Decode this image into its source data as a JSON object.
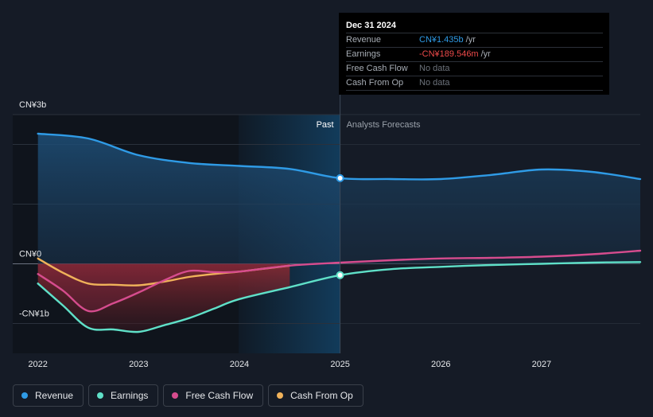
{
  "chart_data": {
    "type": "area",
    "y_tick_labels": [
      "CN¥3b",
      "CN¥0",
      "-CN¥1b"
    ],
    "x_tick_labels": [
      "2022",
      "2023",
      "2024",
      "2025",
      "2026",
      "2027"
    ],
    "x_ticks": [
      2022,
      2023,
      2024,
      2025,
      2026,
      2027
    ],
    "xlim": [
      2021.75,
      2027.98
    ],
    "ylim": [
      -1.5,
      2.5
    ],
    "gridlines_b": [
      2.5,
      2,
      1,
      0,
      -1
    ],
    "past_label": "Past",
    "forecast_label": "Analysts Forecasts",
    "divider_x": 2025,
    "legend_position": "bottom-left",
    "series": [
      {
        "name": "Revenue",
        "color": "#2f9be6",
        "points": [
          [
            2022,
            2.18
          ],
          [
            2022.5,
            2.1
          ],
          [
            2023,
            1.82
          ],
          [
            2023.5,
            1.69
          ],
          [
            2024,
            1.64
          ],
          [
            2024.5,
            1.59
          ],
          [
            2025,
            1.435
          ],
          [
            2025.5,
            1.42
          ],
          [
            2026,
            1.42
          ],
          [
            2026.5,
            1.49
          ],
          [
            2027,
            1.58
          ],
          [
            2027.5,
            1.54
          ],
          [
            2027.98,
            1.42
          ]
        ]
      },
      {
        "name": "Earnings",
        "color": "#5fe0c8",
        "points": [
          [
            2022,
            -0.33
          ],
          [
            2022.25,
            -0.7
          ],
          [
            2022.5,
            -1.07
          ],
          [
            2022.75,
            -1.1
          ],
          [
            2023,
            -1.14
          ],
          [
            2023.25,
            -1.03
          ],
          [
            2023.5,
            -0.91
          ],
          [
            2023.75,
            -0.75
          ],
          [
            2024,
            -0.59
          ],
          [
            2024.5,
            -0.39
          ],
          [
            2025,
            -0.19
          ],
          [
            2025.5,
            -0.09
          ],
          [
            2026,
            -0.05
          ],
          [
            2026.5,
            -0.02
          ],
          [
            2027,
            0.0
          ],
          [
            2027.5,
            0.02
          ],
          [
            2027.98,
            0.03
          ]
        ]
      },
      {
        "name": "Free Cash Flow",
        "color": "#d64c8e",
        "points": [
          [
            2022,
            -0.17
          ],
          [
            2022.25,
            -0.45
          ],
          [
            2022.5,
            -0.79
          ],
          [
            2022.75,
            -0.66
          ],
          [
            2023,
            -0.48
          ],
          [
            2023.25,
            -0.28
          ],
          [
            2023.5,
            -0.12
          ],
          [
            2023.75,
            -0.14
          ],
          [
            2024,
            -0.13
          ],
          [
            2024.5,
            -0.03
          ],
          [
            2025,
            0.02
          ],
          [
            2025.5,
            0.06
          ],
          [
            2026,
            0.09
          ],
          [
            2026.5,
            0.1
          ],
          [
            2027,
            0.12
          ],
          [
            2027.5,
            0.16
          ],
          [
            2027.98,
            0.22
          ]
        ]
      },
      {
        "name": "Cash From Op",
        "color": "#f0b25a",
        "points": [
          [
            2022,
            0.09
          ],
          [
            2022.25,
            -0.15
          ],
          [
            2022.5,
            -0.33
          ],
          [
            2022.75,
            -0.35
          ],
          [
            2023,
            -0.36
          ],
          [
            2023.25,
            -0.3
          ],
          [
            2023.5,
            -0.22
          ],
          [
            2023.75,
            -0.17
          ],
          [
            2024,
            -0.13
          ],
          [
            2024.25,
            -0.08
          ],
          [
            2024.5,
            -0.03
          ]
        ]
      }
    ],
    "highlight_points": [
      {
        "series": "Revenue",
        "x": 2025,
        "y": 1.435
      },
      {
        "series": "Earnings",
        "x": 2025,
        "y": -0.19
      }
    ]
  },
  "tooltip": {
    "date": "Dec 31 2024",
    "rows": [
      {
        "key": "Revenue",
        "value": "CN¥1.435b",
        "unit": "/yr",
        "color": "#2f9be6"
      },
      {
        "key": "Earnings",
        "value": "-CN¥189.546m",
        "unit": "/yr",
        "color": "#ee4a4a"
      },
      {
        "key": "Free Cash Flow",
        "value": "No data",
        "unit": "",
        "color": "#6c727b"
      },
      {
        "key": "Cash From Op",
        "value": "No data",
        "unit": "",
        "color": "#6c727b"
      }
    ]
  },
  "legend": [
    {
      "label": "Revenue",
      "color": "#2f9be6"
    },
    {
      "label": "Earnings",
      "color": "#5fe0c8"
    },
    {
      "label": "Free Cash Flow",
      "color": "#d64c8e"
    },
    {
      "label": "Cash From Op",
      "color": "#f0b25a"
    }
  ]
}
